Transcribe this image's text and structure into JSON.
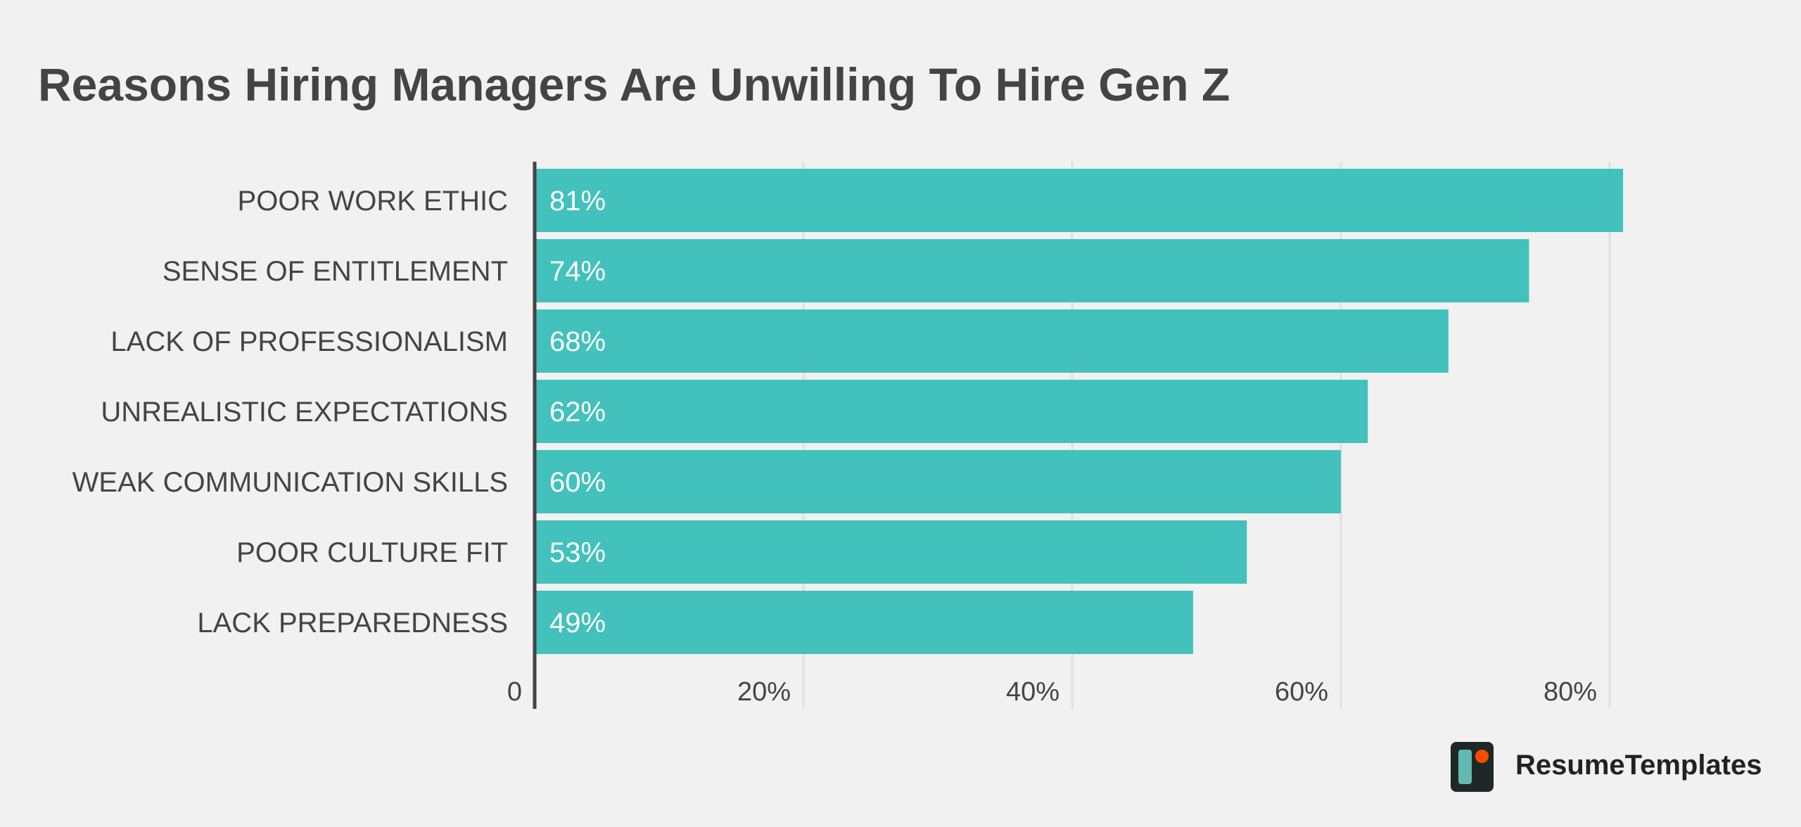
{
  "chart_data": {
    "type": "bar",
    "orientation": "horizontal",
    "title": "Reasons Hiring Managers Are Unwilling To Hire Gen Z",
    "categories": [
      "POOR WORK ETHIC",
      "SENSE OF ENTITLEMENT",
      "LACK OF PROFESSIONALISM",
      "UNREALISTIC EXPECTATIONS",
      "WEAK COMMUNICATION SKILLS",
      "POOR CULTURE FIT",
      "LACK PREPAREDNESS"
    ],
    "values": [
      81,
      74,
      68,
      62,
      60,
      53,
      49
    ],
    "data_labels": [
      "81%",
      "74%",
      "68%",
      "62%",
      "60%",
      "53%",
      "49%"
    ],
    "xticks": [
      0,
      20,
      40,
      60,
      80
    ],
    "xtick_labels": [
      "0",
      "20%",
      "40%",
      "60%",
      "80%"
    ],
    "xlim": [
      0,
      90
    ],
    "grid": true,
    "bar_color": "#42c1bd"
  },
  "brand": {
    "name": "ResumeTemplates",
    "colors": {
      "box": "#1f2826",
      "bar": "#62b9b1",
      "dot": "#ff4a00"
    }
  }
}
